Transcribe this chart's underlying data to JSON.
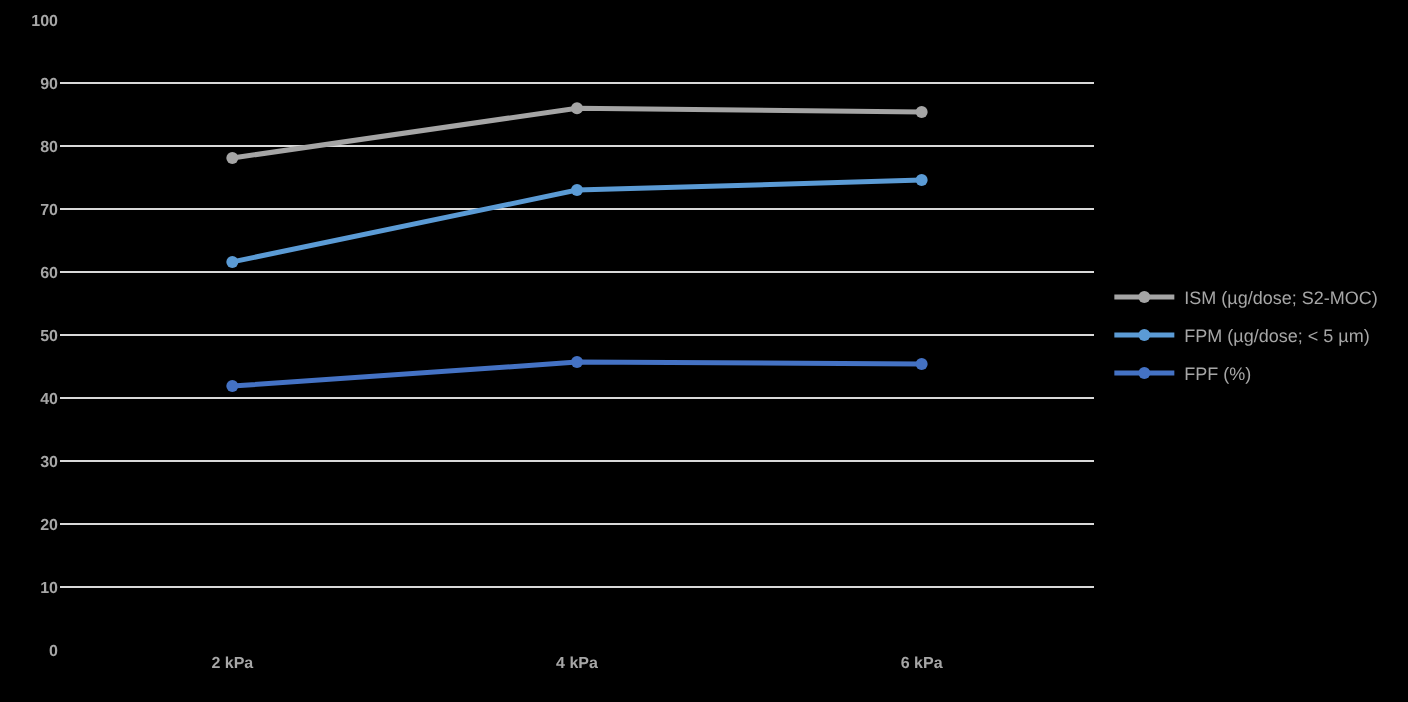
{
  "chart_data": {
    "type": "line",
    "categories": [
      "2 kPa",
      "4 kPa",
      "6 kPa"
    ],
    "series": [
      {
        "name": "ISM (µg/dose; S2-MOC)",
        "color": "#a5a5a5",
        "values": [
          78.1,
          86.0,
          85.4
        ]
      },
      {
        "name": "FPM (µg/dose; < 5 µm)",
        "color": "#5b9bd5",
        "values": [
          61.6,
          73.0,
          74.6
        ]
      },
      {
        "name": "FPF (%)",
        "color": "#4472c4",
        "values": [
          41.9,
          45.7,
          45.4
        ]
      }
    ],
    "ylim": [
      0,
      100
    ],
    "yticks": [
      0,
      10,
      20,
      30,
      40,
      50,
      60,
      70,
      80,
      90,
      100
    ],
    "grid": "y",
    "legend": "right",
    "marker": "circle",
    "line_style": "solid"
  }
}
